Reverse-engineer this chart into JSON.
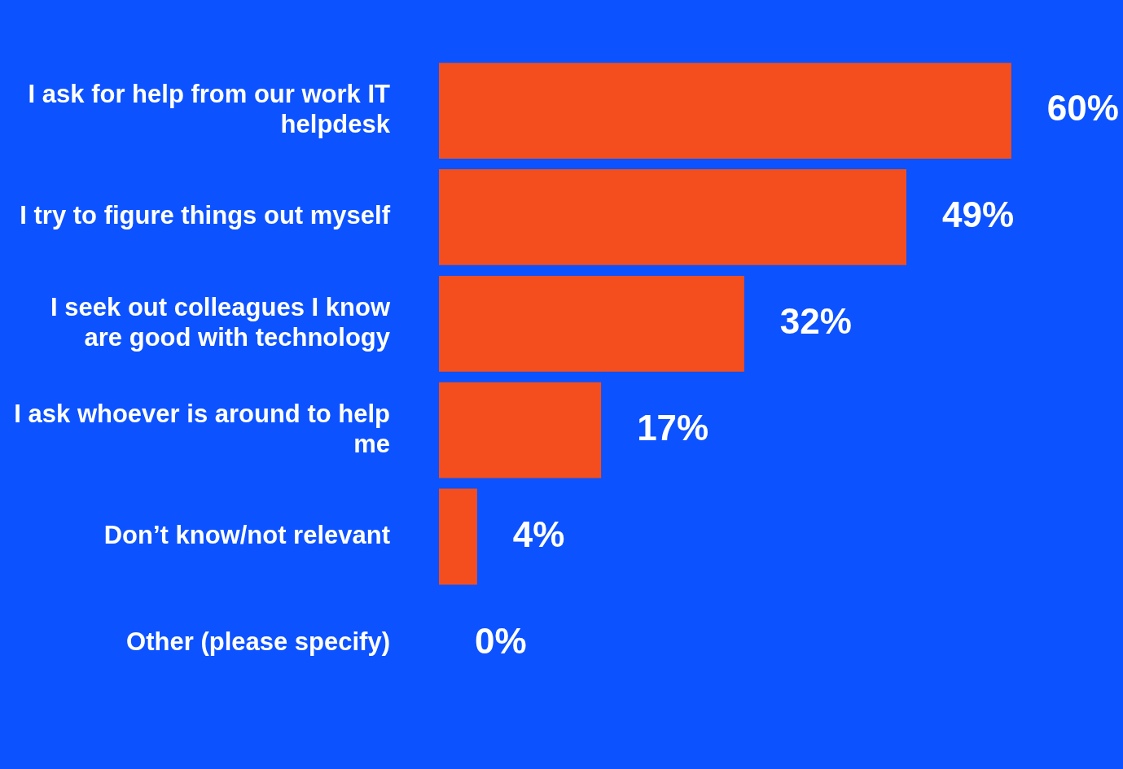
{
  "chart_data": {
    "type": "bar",
    "orientation": "horizontal",
    "categories": [
      "I ask for help from our work IT helpdesk",
      "I try to figure things out myself",
      "I seek out colleagues I know are good with technology",
      "I ask whoever is around to help me",
      "Don’t know/not relevant",
      "Other (please specify)"
    ],
    "values": [
      60,
      49,
      32,
      17,
      4,
      0
    ],
    "value_labels": [
      "60%",
      "49%",
      "32%",
      "17%",
      "4%",
      "0%"
    ],
    "color": "#f44e1e",
    "grid": false,
    "legend": false
  }
}
